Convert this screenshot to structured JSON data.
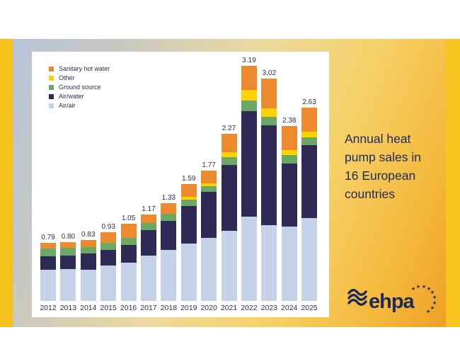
{
  "banner": {
    "title_lines": [
      "Annual heat",
      "pump sales in",
      "16 European",
      "countries"
    ],
    "logo_text": "ehpa"
  },
  "colors": {
    "sanitary_hot_water": "#ED8A2D",
    "other": "#FFD200",
    "ground_source": "#6CA865",
    "air_water": "#2E2A55",
    "air_air": "#C5D2E8",
    "caption_text": "#1E2A5A",
    "axis_text": "#2A2F55",
    "panel_background": "#FFFFFF",
    "frame_gold": "#F6C11C"
  },
  "chart_data": {
    "type": "bar",
    "stacked": true,
    "title": "Annual heat pump sales in 16 European countries",
    "xlabel": "",
    "ylabel": "",
    "unit": "million units",
    "grid": false,
    "legend_position": "top-left",
    "ylim": [
      0,
      3.4
    ],
    "categories": [
      "2012",
      "2013",
      "2014",
      "2015",
      "2016",
      "2017",
      "2018",
      "2019",
      "2020",
      "2021",
      "2022",
      "2023",
      "2024",
      "2025"
    ],
    "totals": [
      "0.79",
      "0.80",
      "0.83",
      "0.93",
      "1.05",
      "1.17",
      "1.33",
      "1.59",
      "1.77",
      "2.27",
      "3.19",
      "3.02",
      "2.38",
      "2.63"
    ],
    "series": [
      {
        "name": "Air/air",
        "color": "#C5D2E8",
        "values": [
          0.42,
          0.43,
          0.42,
          0.48,
          0.52,
          0.62,
          0.69,
          0.78,
          0.86,
          0.95,
          1.14,
          1.03,
          1.01,
          1.13
        ]
      },
      {
        "name": "Air/water",
        "color": "#2E2A55",
        "values": [
          0.19,
          0.19,
          0.22,
          0.21,
          0.24,
          0.34,
          0.4,
          0.51,
          0.62,
          0.9,
          1.44,
          1.36,
          0.86,
          0.99
        ]
      },
      {
        "name": "Ground source",
        "color": "#6CA865",
        "values": [
          0.1,
          0.1,
          0.09,
          0.1,
          0.1,
          0.1,
          0.09,
          0.09,
          0.08,
          0.1,
          0.14,
          0.11,
          0.11,
          0.1
        ]
      },
      {
        "name": "Other",
        "color": "#FFD200",
        "values": [
          0,
          0,
          0,
          0,
          0,
          0,
          0,
          0.03,
          0.04,
          0.07,
          0.14,
          0.12,
          0.07,
          0.08
        ]
      },
      {
        "name": "Sanitary hot water",
        "color": "#ED8A2D",
        "values": [
          0.08,
          0.08,
          0.1,
          0.14,
          0.19,
          0.11,
          0.15,
          0.18,
          0.17,
          0.25,
          0.33,
          0.4,
          0.33,
          0.33
        ]
      }
    ],
    "legend_order": [
      "Sanitary hot water",
      "Other",
      "Ground source",
      "Air/water",
      "Air/air"
    ]
  }
}
